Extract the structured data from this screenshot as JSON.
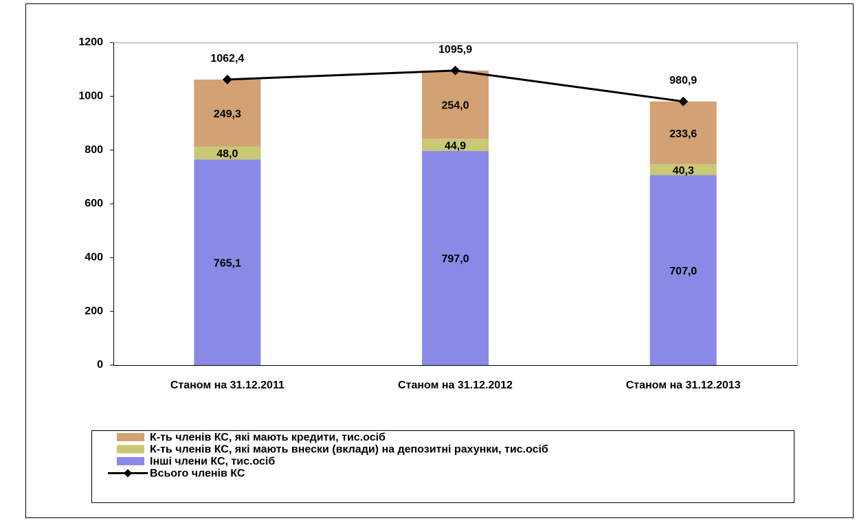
{
  "chart_data": {
    "type": "bar",
    "stacked": true,
    "categories": [
      "Станом на 31.12.2011",
      "Станом на 31.12.2012",
      "Станом на 31.12.2013"
    ],
    "series": [
      {
        "name": "К-ть членів КС, які мають кредити, тис.осіб",
        "color": "#d2a274",
        "values": [
          249.3,
          254.0,
          233.6
        ],
        "value_labels": [
          "249,3",
          "254,0",
          "233,6"
        ]
      },
      {
        "name": "К-ть членів КС, які мають внески (вклади) на депозитні рахунки, тис.осіб",
        "color": "#c9c874",
        "values": [
          48.0,
          44.9,
          40.3
        ],
        "value_labels": [
          "48,0",
          "44,9",
          "40,3"
        ]
      },
      {
        "name": "Інші члени КС, тис.осіб",
        "color": "#8a8ae6",
        "values": [
          765.1,
          797.0,
          707.0
        ],
        "value_labels": [
          "765,1",
          "797,0",
          "707,0"
        ]
      },
      {
        "name": "Всього членів КС",
        "type": "line",
        "color": "#000000",
        "values": [
          1062.4,
          1095.9,
          980.9
        ],
        "value_labels": [
          "1062,4",
          "1095,9",
          "980,9"
        ]
      }
    ],
    "ylim": [
      0,
      1200
    ],
    "yticks": [
      0,
      200,
      400,
      600,
      800,
      1000,
      1200
    ]
  }
}
